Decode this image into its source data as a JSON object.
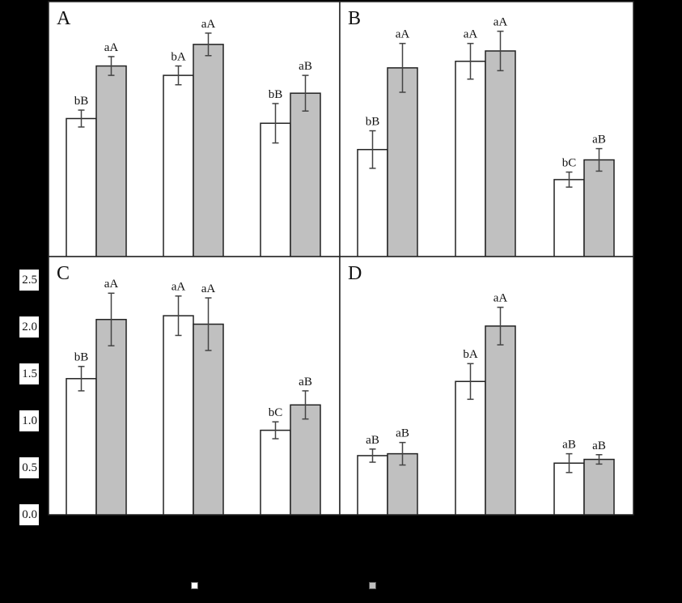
{
  "chart_data": [
    {
      "type": "bar",
      "panel": "A",
      "title": "A",
      "categories": [
        "",
        "",
        ""
      ],
      "series": [
        {
          "name": "",
          "color": "#ffffff",
          "values": [
            1.47,
            1.93,
            1.42
          ],
          "errors": [
            0.09,
            0.1,
            0.21
          ],
          "labels": [
            "bB",
            "bA",
            "bB"
          ]
        },
        {
          "name": "",
          "color": "#c0c0c0",
          "values": [
            2.03,
            2.26,
            1.74
          ],
          "errors": [
            0.1,
            0.12,
            0.19
          ],
          "labels": [
            "aA",
            "aA",
            "aB"
          ]
        }
      ],
      "ylim": [
        0,
        2.7
      ],
      "grid": false
    },
    {
      "type": "bar",
      "panel": "B",
      "title": "B",
      "categories": [
        "",
        "",
        ""
      ],
      "series": [
        {
          "name": "",
          "color": "#ffffff",
          "values": [
            1.14,
            2.08,
            0.82
          ],
          "errors": [
            0.2,
            0.19,
            0.08
          ],
          "labels": [
            "bB",
            "aA",
            "bC"
          ]
        },
        {
          "name": "",
          "color": "#c0c0c0",
          "values": [
            2.01,
            2.19,
            1.03
          ],
          "errors": [
            0.26,
            0.21,
            0.12
          ],
          "labels": [
            "aA",
            "aA",
            "aB"
          ]
        }
      ],
      "ylim": [
        0,
        2.7
      ],
      "grid": false
    },
    {
      "type": "bar",
      "panel": "C",
      "title": "C",
      "categories": [
        "",
        "",
        ""
      ],
      "series": [
        {
          "name": "",
          "color": "#ffffff",
          "values": [
            1.45,
            2.12,
            0.9
          ],
          "errors": [
            0.13,
            0.21,
            0.09
          ],
          "labels": [
            "bB",
            "aA",
            "bC"
          ]
        },
        {
          "name": "",
          "color": "#c0c0c0",
          "values": [
            2.08,
            2.03,
            1.17
          ],
          "errors": [
            0.28,
            0.28,
            0.15
          ],
          "labels": [
            "aA",
            "aA",
            "aB"
          ]
        }
      ],
      "yticks": [
        "0.0",
        "0.5",
        "1.0",
        "1.5",
        "2.0",
        "2.5"
      ],
      "ylim": [
        0,
        2.7
      ],
      "grid": false
    },
    {
      "type": "bar",
      "panel": "D",
      "title": "D",
      "categories": [
        "",
        "",
        ""
      ],
      "series": [
        {
          "name": "",
          "color": "#ffffff",
          "values": [
            0.63,
            1.42,
            0.55
          ],
          "errors": [
            0.07,
            0.19,
            0.1
          ],
          "labels": [
            "aB",
            "bA",
            "aB"
          ]
        },
        {
          "name": "",
          "color": "#c0c0c0",
          "values": [
            0.65,
            2.01,
            0.59
          ],
          "errors": [
            0.12,
            0.2,
            0.05
          ],
          "labels": [
            "aB",
            "aA",
            "aB"
          ]
        }
      ],
      "ylim": [
        0,
        2.7
      ],
      "grid": false
    }
  ],
  "legend": {
    "position": "bottom",
    "items": [
      {
        "color": "#ffffff"
      },
      {
        "color": "#c0c0c0"
      }
    ]
  },
  "colors": {
    "background": "#000000",
    "panel": "#ffffff",
    "bar_outline": "#222222",
    "error_bar": "#444444",
    "gray_bar": "#c0c0c0"
  }
}
